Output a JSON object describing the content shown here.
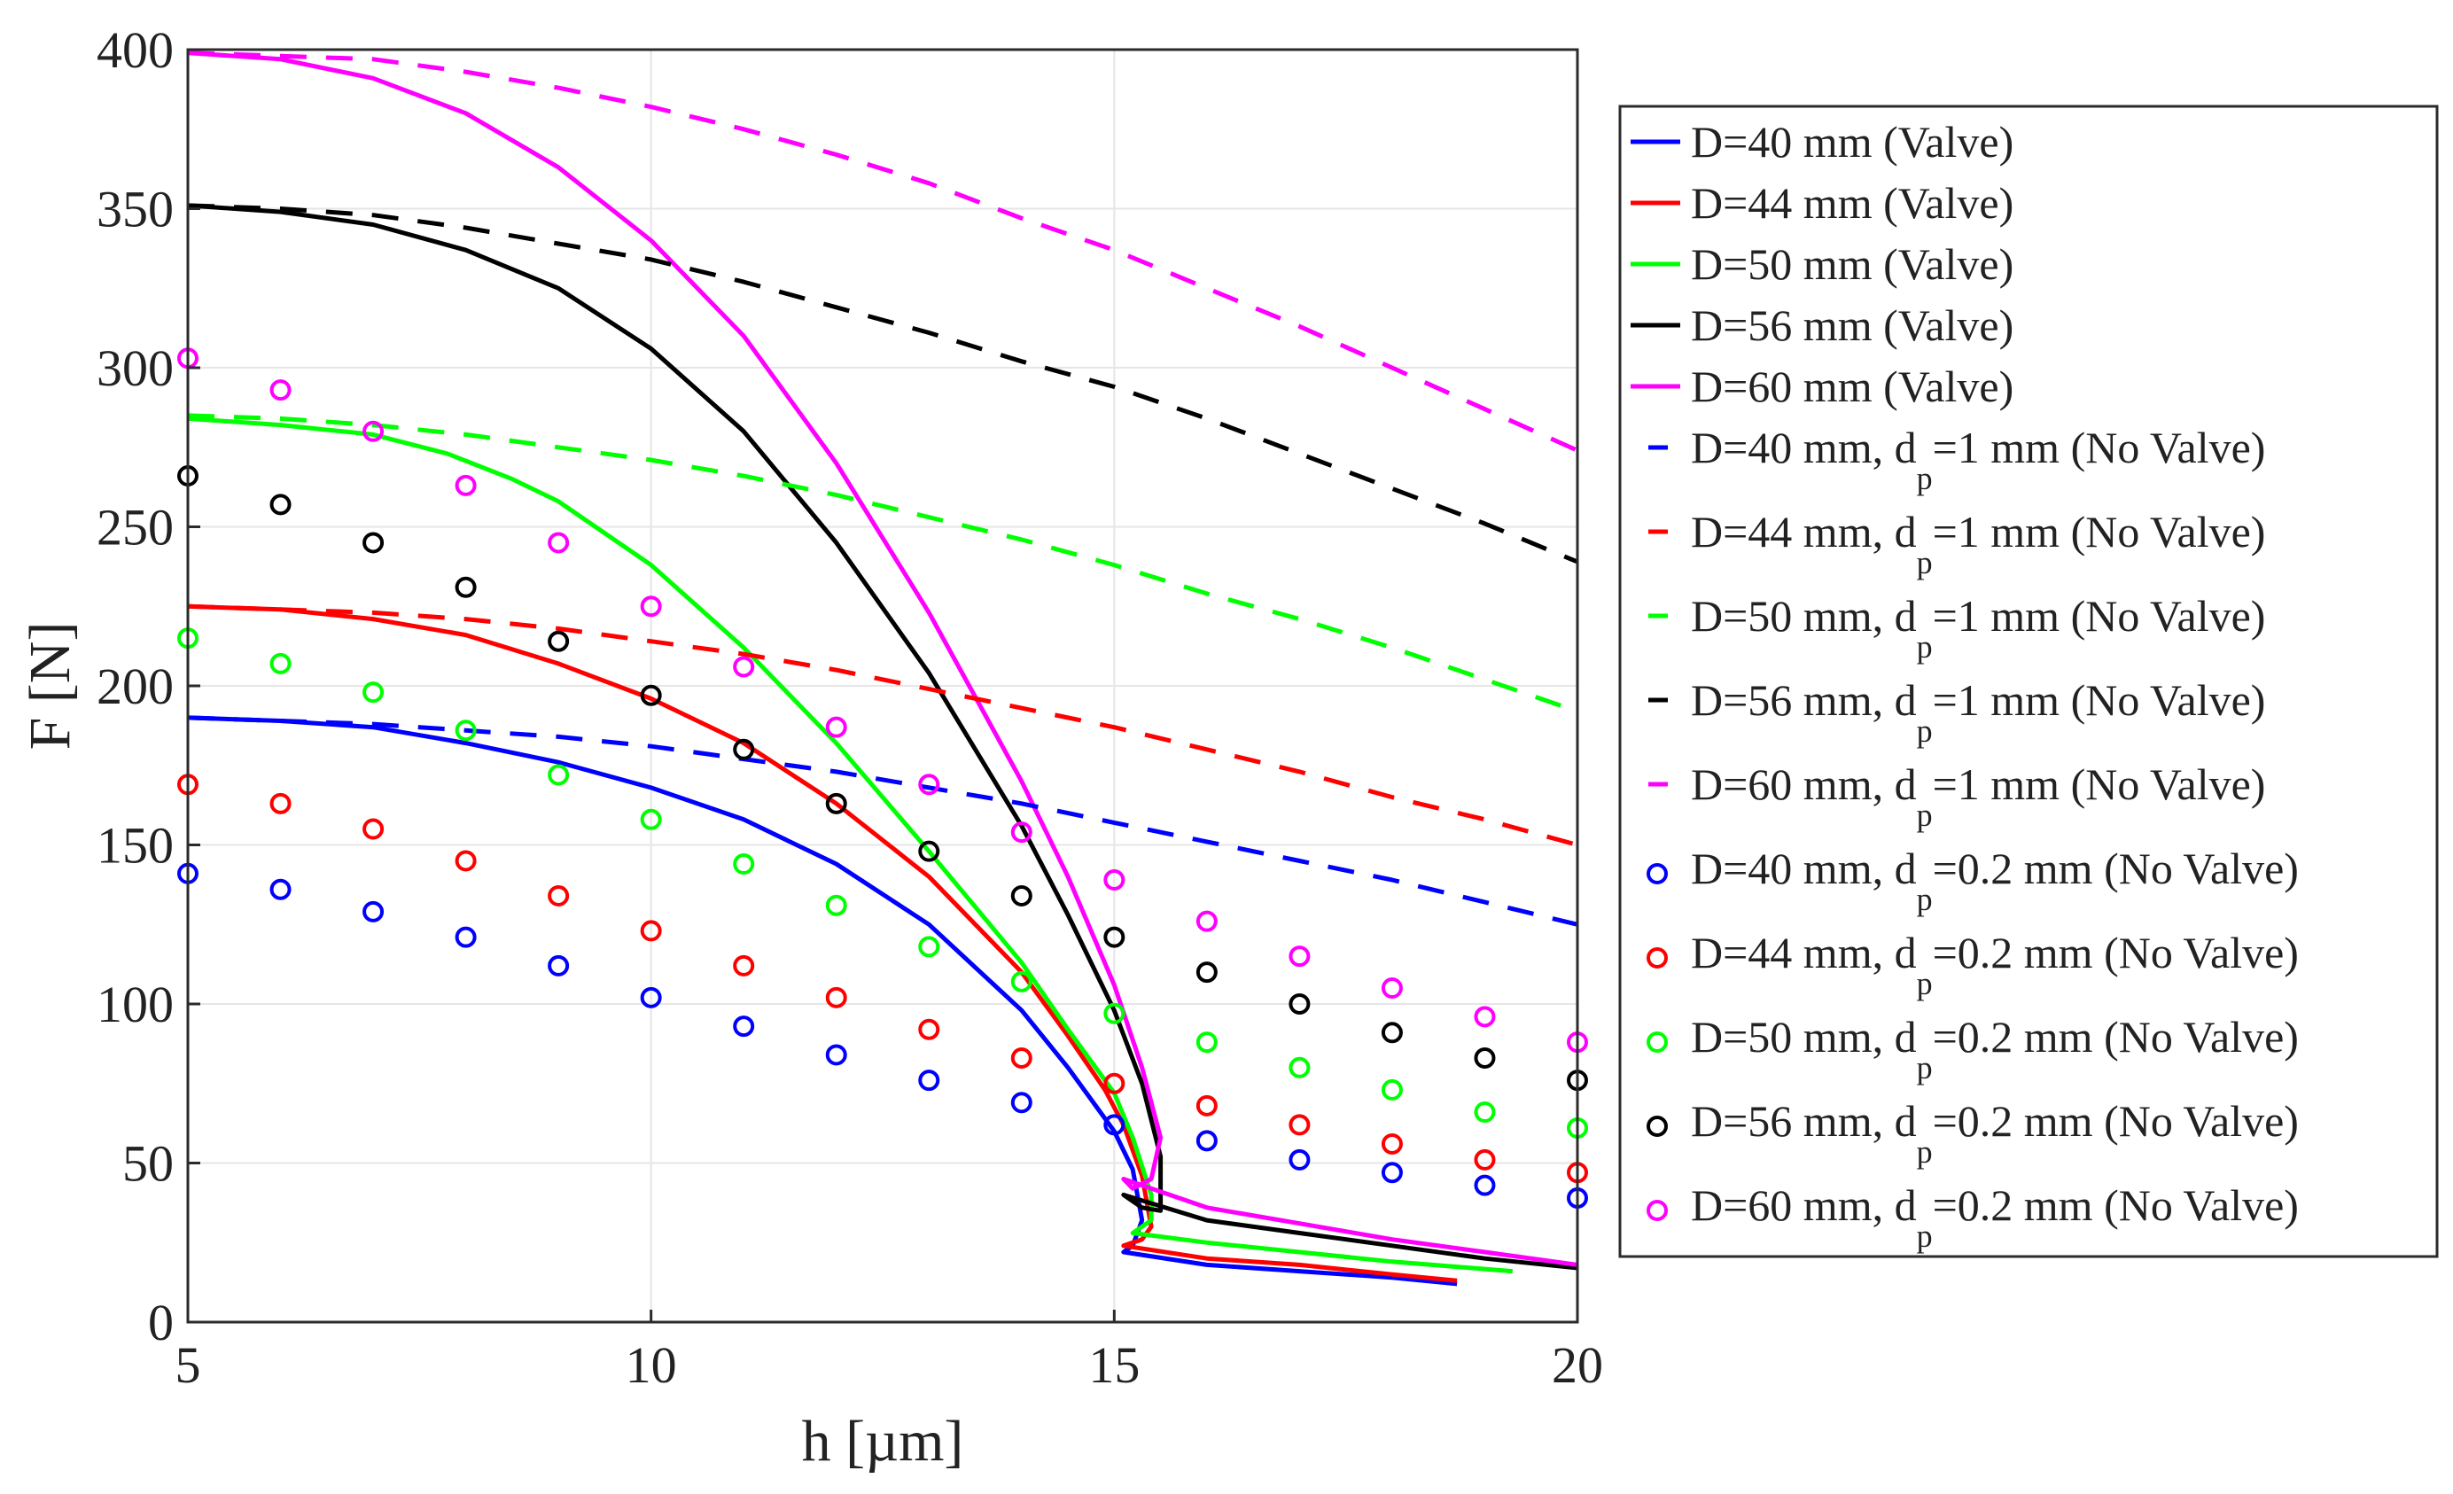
{
  "chart_data": {
    "type": "line",
    "xlabel": "h [µm]",
    "ylabel": "F [N]",
    "xlim": [
      5,
      20
    ],
    "ylim": [
      0,
      400
    ],
    "xticks": [
      "5",
      "10",
      "15",
      "20"
    ],
    "yticks": [
      "0",
      "50",
      "100",
      "150",
      "200",
      "250",
      "300",
      "350",
      "400"
    ],
    "grid": true,
    "legend_position": "right",
    "series": [
      {
        "label": "D=40 mm (Valve)",
        "label_parts": [
          "D=40 mm (Valve)"
        ],
        "style": "solid",
        "color": "#0000ff",
        "x": [
          5,
          6,
          7,
          8,
          9,
          10,
          11,
          12,
          13,
          14,
          14.5,
          14.8,
          15.0,
          15.2,
          15.3,
          15.2,
          15.1,
          16,
          17,
          18,
          18.7
        ],
        "y": [
          190,
          189,
          187,
          182,
          176,
          168,
          158,
          144,
          125,
          98,
          80,
          68,
          60,
          48,
          32,
          24,
          22,
          18,
          16,
          14,
          12
        ]
      },
      {
        "label": "D=44 mm (Valve)",
        "label_parts": [
          "D=44 mm (Valve)"
        ],
        "style": "solid",
        "color": "#ff0000",
        "x": [
          5,
          6,
          7,
          8,
          9,
          10,
          11,
          12,
          13,
          14,
          14.5,
          14.9,
          15.1,
          15.3,
          15.4,
          15.3,
          15.1,
          16,
          17,
          18,
          18.7
        ],
        "y": [
          225,
          224,
          221,
          216,
          207,
          196,
          182,
          163,
          140,
          110,
          90,
          73,
          62,
          46,
          30,
          26,
          24,
          20,
          18,
          15,
          13
        ]
      },
      {
        "label": "D=50 mm (Valve)",
        "label_parts": [
          "D=50 mm (Valve)"
        ],
        "style": "solid",
        "color": "#00ff00",
        "x": [
          5,
          6,
          7,
          7.8,
          8.5,
          9,
          10,
          11,
          12,
          13,
          14,
          14.5,
          15.0,
          15.2,
          15.4,
          15.4,
          15.2,
          16,
          17,
          18,
          19.3
        ],
        "y": [
          284,
          282,
          279,
          273,
          265,
          258,
          238,
          212,
          182,
          148,
          113,
          92,
          72,
          58,
          40,
          32,
          28,
          25,
          22,
          19,
          16
        ]
      },
      {
        "label": "D=56 mm (Valve)",
        "label_parts": [
          "D=56 mm (Valve)"
        ],
        "style": "solid",
        "color": "#000000",
        "x": [
          5,
          6,
          7,
          8,
          9,
          10,
          11,
          12,
          13,
          14,
          14.5,
          15.0,
          15.3,
          15.5,
          15.5,
          15.3,
          15.1,
          16,
          17,
          18,
          19,
          20
        ],
        "y": [
          351,
          349,
          345,
          337,
          325,
          306,
          280,
          245,
          204,
          156,
          128,
          98,
          75,
          52,
          35,
          36,
          40,
          32,
          28,
          24,
          20,
          17
        ]
      },
      {
        "label": "D=60 mm (Valve)",
        "label_parts": [
          "D=60 mm (Valve)"
        ],
        "style": "solid",
        "color": "#ff00ff",
        "x": [
          5,
          6,
          7,
          8,
          9,
          10,
          11,
          12,
          13,
          14,
          14.5,
          15.0,
          15.3,
          15.5,
          15.4,
          15.2,
          15.1,
          16,
          17,
          18,
          19,
          20
        ],
        "y": [
          399,
          397,
          391,
          380,
          363,
          340,
          310,
          270,
          223,
          170,
          140,
          106,
          80,
          58,
          45,
          42,
          45,
          36,
          31,
          26,
          22,
          18
        ]
      },
      {
        "label": "D=40 mm, dp=1 mm (No Valve)",
        "label_parts": [
          "D=40 mm, d",
          "p",
          "=1 mm (No Valve)"
        ],
        "style": "dashed",
        "color": "#0000ff",
        "x": [
          5,
          6,
          7,
          8,
          9,
          10,
          11,
          12,
          13,
          14,
          15,
          16,
          17,
          18,
          19,
          20
        ],
        "y": [
          190,
          189,
          188,
          186,
          184,
          181,
          177,
          173,
          168,
          163,
          157,
          151,
          145,
          139,
          132,
          125
        ]
      },
      {
        "label": "D=44 mm, dp=1 mm (No Valve)",
        "label_parts": [
          "D=44 mm, d",
          "p",
          "=1 mm (No Valve)"
        ],
        "style": "dashed",
        "color": "#ff0000",
        "x": [
          5,
          6,
          7,
          8,
          9,
          10,
          11,
          12,
          13,
          14,
          15,
          16,
          17,
          18,
          19,
          20
        ],
        "y": [
          225,
          224,
          223,
          221,
          218,
          214,
          210,
          205,
          199,
          193,
          187,
          180,
          173,
          165,
          158,
          150
        ]
      },
      {
        "label": "D=50 mm, dp=1 mm (No Valve)",
        "label_parts": [
          "D=50 mm, d",
          "p",
          "=1 mm (No Valve)"
        ],
        "style": "dashed",
        "color": "#00ff00",
        "x": [
          5,
          6,
          7,
          8,
          9,
          10,
          11,
          12,
          13,
          14,
          15,
          16,
          17,
          18,
          19,
          20
        ],
        "y": [
          285,
          284,
          282,
          279,
          275,
          271,
          266,
          260,
          253,
          246,
          238,
          229,
          221,
          212,
          202,
          192
        ]
      },
      {
        "label": "D=56 mm, dp=1 mm (No Valve)",
        "label_parts": [
          "D=56 mm, d",
          "p",
          "=1 mm (No Valve)"
        ],
        "style": "dashed",
        "color": "#000000",
        "x": [
          5,
          6,
          7,
          8,
          9,
          10,
          11,
          12,
          13,
          14,
          15,
          16,
          17,
          18,
          19,
          20
        ],
        "y": [
          351,
          350,
          348,
          344,
          339,
          334,
          327,
          319,
          311,
          302,
          294,
          284,
          273,
          262,
          251,
          239
        ]
      },
      {
        "label": "D=60 mm, dp=1 mm (No Valve)",
        "label_parts": [
          "D=60 mm, d",
          "p",
          "=1 mm (No Valve)"
        ],
        "style": "dashed",
        "color": "#ff00ff",
        "x": [
          5,
          6,
          7,
          8,
          9,
          10,
          11,
          12,
          13,
          14,
          15,
          16,
          17,
          18,
          19,
          20
        ],
        "y": [
          399,
          398,
          397,
          393,
          388,
          382,
          375,
          367,
          358,
          347,
          337,
          325,
          313,
          300,
          287,
          274
        ]
      },
      {
        "label": "D=40 mm, dp=0.2 mm (No Valve)",
        "label_parts": [
          "D=40 mm, d",
          "p",
          "=0.2 mm (No Valve)"
        ],
        "style": "markers",
        "color": "#0000ff",
        "x": [
          5,
          6,
          7,
          8,
          9,
          10,
          11,
          12,
          13,
          14,
          15,
          16,
          17,
          18,
          19,
          20
        ],
        "y": [
          141,
          136,
          129,
          121,
          112,
          102,
          93,
          84,
          76,
          69,
          62,
          57,
          51,
          47,
          43,
          39
        ]
      },
      {
        "label": "D=44 mm, dp=0.2 mm (No Valve)",
        "label_parts": [
          "D=44 mm, d",
          "p",
          "=0.2 mm (No Valve)"
        ],
        "style": "markers",
        "color": "#ff0000",
        "x": [
          5,
          6,
          7,
          8,
          9,
          10,
          11,
          12,
          13,
          14,
          15,
          16,
          17,
          18,
          19,
          20
        ],
        "y": [
          169,
          163,
          155,
          145,
          134,
          123,
          112,
          102,
          92,
          83,
          75,
          68,
          62,
          56,
          51,
          47
        ]
      },
      {
        "label": "D=50 mm, dp=0.2 mm (No Valve)",
        "label_parts": [
          "D=50 mm, d",
          "p",
          "=0.2 mm (No Valve)"
        ],
        "style": "markers",
        "color": "#00ff00",
        "x": [
          5,
          6,
          7,
          8,
          9,
          10,
          11,
          12,
          13,
          14,
          15,
          16,
          17,
          18,
          19,
          20
        ],
        "y": [
          215,
          207,
          198,
          186,
          172,
          158,
          144,
          131,
          118,
          107,
          97,
          88,
          80,
          73,
          66,
          61
        ]
      },
      {
        "label": "D=56 mm, dp=0.2 mm (No Valve)",
        "label_parts": [
          "D=56 mm, d",
          "p",
          "=0.2 mm (No Valve)"
        ],
        "style": "markers",
        "color": "#000000",
        "x": [
          5,
          6,
          7,
          8,
          9,
          10,
          11,
          12,
          13,
          14,
          15,
          16,
          17,
          18,
          19,
          20
        ],
        "y": [
          266,
          257,
          245,
          231,
          214,
          197,
          180,
          163,
          148,
          134,
          121,
          110,
          100,
          91,
          83,
          76
        ]
      },
      {
        "label": "D=60 mm, dp=0.2 mm (No Valve)",
        "label_parts": [
          "D=60 mm, d",
          "p",
          "=0.2 mm (No Valve)"
        ],
        "style": "markers",
        "color": "#ff00ff",
        "x": [
          5,
          6,
          7,
          8,
          9,
          10,
          11,
          12,
          13,
          14,
          15,
          16,
          17,
          18,
          19,
          20
        ],
        "y": [
          303,
          293,
          280,
          263,
          245,
          225,
          206,
          187,
          169,
          154,
          139,
          126,
          115,
          105,
          96,
          88
        ]
      }
    ]
  }
}
